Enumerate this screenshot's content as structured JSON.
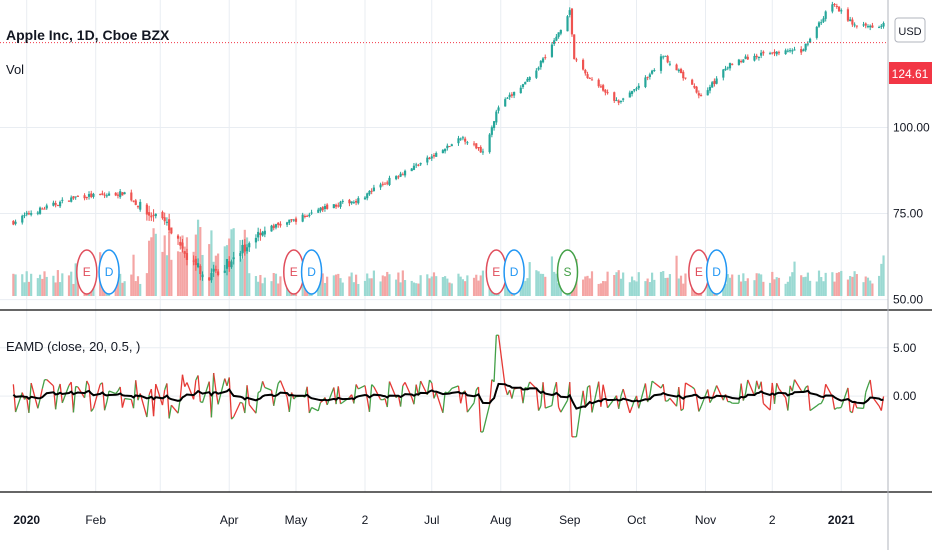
{
  "header": {
    "symbol_title": "Apple Inc, 1D, Cboe BZX",
    "volume_label": "Vol",
    "currency_button": "USD"
  },
  "price_badge": {
    "value": "124.61",
    "color": "#f23645"
  },
  "indicator": {
    "label": "EAMD (close, 20, 0.5, )"
  },
  "colors": {
    "up": "#26a69a",
    "down": "#ef5350",
    "vol_up": "#9ad9d2",
    "vol_down": "#f4a5a4",
    "osc_up": "#43a047",
    "osc_down": "#e53935",
    "signal": "#000000",
    "grid": "#e9edf2"
  },
  "chart_data": [
    {
      "type": "candlestick",
      "title": "Apple Inc, 1D, Cboe BZX",
      "y_axis": {
        "ticks": [
          "100.00",
          "75.00",
          "50.00"
        ],
        "ylim": [
          47,
          137
        ]
      },
      "last_price": 124.61,
      "x_ticks": [
        "2020",
        "Feb",
        "Apr",
        "May",
        "2",
        "Jul",
        "Aug",
        "Sep",
        "Oct",
        "Nov",
        "2",
        "2021"
      ],
      "close_path": [
        {
          "date": "2019-12-26",
          "close": 72.5
        },
        {
          "date": "2020-01-02",
          "close": 75.0
        },
        {
          "date": "2020-01-15",
          "close": 78.0
        },
        {
          "date": "2020-01-24",
          "close": 80.0
        },
        {
          "date": "2020-02-05",
          "close": 80.3
        },
        {
          "date": "2020-02-14",
          "close": 81.0
        },
        {
          "date": "2020-02-24",
          "close": 75.0
        },
        {
          "date": "2020-03-05",
          "close": 71.0
        },
        {
          "date": "2020-03-12",
          "close": 63.0
        },
        {
          "date": "2020-03-23",
          "close": 56.5
        },
        {
          "date": "2020-04-01",
          "close": 61.0
        },
        {
          "date": "2020-04-15",
          "close": 70.0
        },
        {
          "date": "2020-04-30",
          "close": 73.0
        },
        {
          "date": "2020-05-15",
          "close": 77.0
        },
        {
          "date": "2020-05-29",
          "close": 79.0
        },
        {
          "date": "2020-06-15",
          "close": 86.0
        },
        {
          "date": "2020-06-30",
          "close": 91.0
        },
        {
          "date": "2020-07-15",
          "close": 97.0
        },
        {
          "date": "2020-07-24",
          "close": 93.0
        },
        {
          "date": "2020-07-31",
          "close": 106.0
        },
        {
          "date": "2020-08-14",
          "close": 114.0
        },
        {
          "date": "2020-08-25",
          "close": 125.0
        },
        {
          "date": "2020-09-01",
          "close": 134.0
        },
        {
          "date": "2020-09-03",
          "close": 120.0
        },
        {
          "date": "2020-09-10",
          "close": 114.0
        },
        {
          "date": "2020-09-23",
          "close": 107.0
        },
        {
          "date": "2020-10-07",
          "close": 115.0
        },
        {
          "date": "2020-10-13",
          "close": 121.0
        },
        {
          "date": "2020-10-30",
          "close": 109.0
        },
        {
          "date": "2020-11-13",
          "close": 119.0
        },
        {
          "date": "2020-12-01",
          "close": 122.0
        },
        {
          "date": "2020-12-14",
          "close": 122.0
        },
        {
          "date": "2020-12-28",
          "close": 136.0
        },
        {
          "date": "2021-01-08",
          "close": 129.0
        },
        {
          "date": "2021-01-20",
          "close": 130.0
        }
      ],
      "event_markers": [
        {
          "letter": "E",
          "date": "2020-01-28",
          "kind": "earnings"
        },
        {
          "letter": "D",
          "date": "2020-02-07",
          "kind": "dividend"
        },
        {
          "letter": "E",
          "date": "2020-04-30",
          "kind": "earnings"
        },
        {
          "letter": "D",
          "date": "2020-05-08",
          "kind": "dividend"
        },
        {
          "letter": "E",
          "date": "2020-07-30",
          "kind": "earnings"
        },
        {
          "letter": "D",
          "date": "2020-08-07",
          "kind": "dividend"
        },
        {
          "letter": "S",
          "date": "2020-08-31",
          "kind": "split"
        },
        {
          "letter": "E",
          "date": "2020-10-29",
          "kind": "earnings"
        },
        {
          "letter": "D",
          "date": "2020-11-06",
          "kind": "dividend"
        }
      ]
    },
    {
      "type": "line",
      "title": "EAMD (close, 20, 0.5, )",
      "y_axis": {
        "ticks": [
          "5.00",
          "0.00"
        ],
        "ylim": [
          -9.7,
          8.7
        ]
      },
      "series": [
        {
          "name": "",
          "values": [
            -0.2,
            0.1,
            2.5,
            -4.5,
            2.8,
            6.3,
            -4.0,
            0.3
          ]
        },
        {
          "name": "",
          "values": [
            0.2,
            0.4,
            0.6,
            -0.5,
            0.3,
            0.9,
            0.1,
            0.0
          ]
        }
      ]
    }
  ]
}
